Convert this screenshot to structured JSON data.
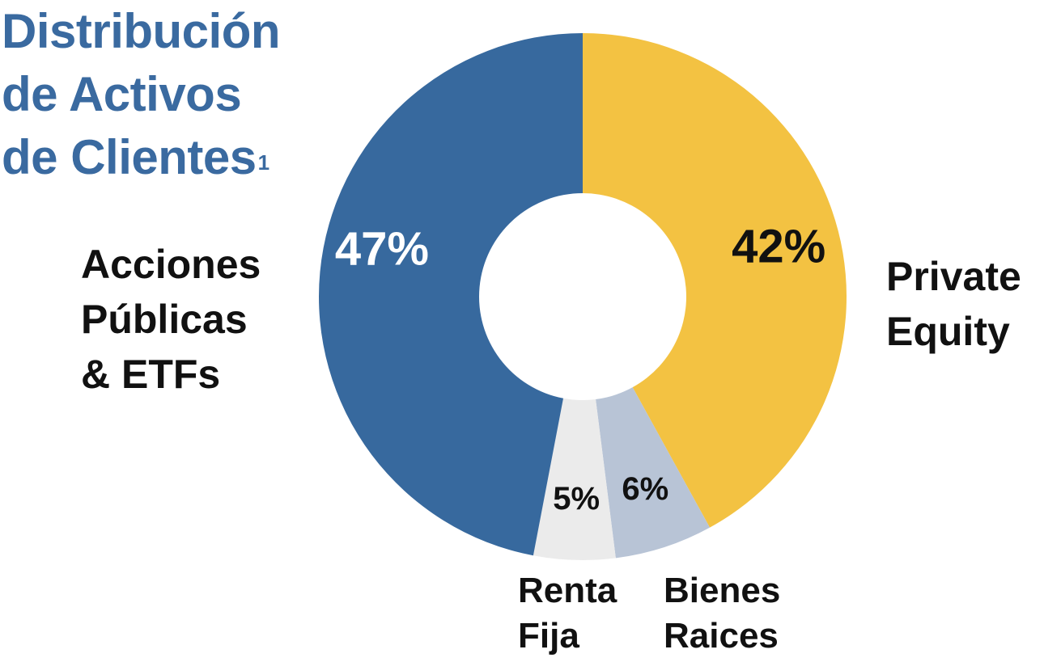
{
  "title": {
    "lines": [
      "Distribución",
      "de Activos",
      "de Clientes"
    ],
    "footnote": "1"
  },
  "chart_data": {
    "type": "pie",
    "donut": true,
    "start": "top",
    "direction": "clockwise",
    "slices": [
      {
        "label": "Private Equity",
        "label_lines": [
          "Private",
          "Equity"
        ],
        "value": 42,
        "value_label": "42%",
        "color": "#f3c242",
        "text_color": "#111111"
      },
      {
        "label": "Bienes Raices",
        "label_lines": [
          "Bienes",
          "Raices"
        ],
        "value": 6,
        "value_label": "6%",
        "color": "#b8c4d6",
        "text_color": "#111111"
      },
      {
        "label": "Renta Fija",
        "label_lines": [
          "Renta",
          "Fija"
        ],
        "value": 5,
        "value_label": "5%",
        "color": "#ebebeb",
        "text_color": "#111111"
      },
      {
        "label": "Acciones Públicas & ETFs",
        "label_lines": [
          "Acciones",
          "Públicas",
          "& ETFs"
        ],
        "value": 47,
        "value_label": "47%",
        "color": "#37699e",
        "text_color": "#ffffff"
      }
    ]
  }
}
